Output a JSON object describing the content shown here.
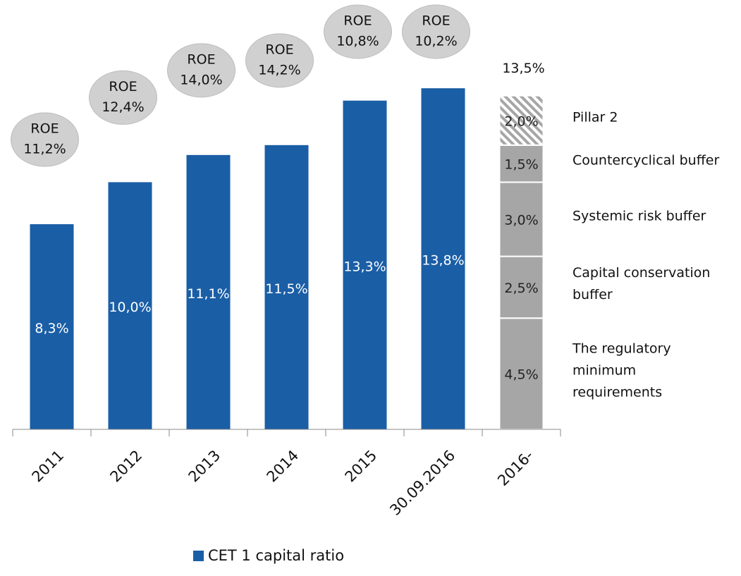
{
  "chart_data": {
    "type": "bar",
    "categories": [
      "2011",
      "2012",
      "2013",
      "2014",
      "2015",
      "30.09.2016",
      "2016-"
    ],
    "series": [
      {
        "name": "CET 1 capital ratio",
        "color": "#1a5ea6",
        "values": [
          8.3,
          10.0,
          11.1,
          11.5,
          13.3,
          13.8,
          null
        ],
        "value_labels": [
          "8,3%",
          "10,0%",
          "11,1%",
          "11,5%",
          "13,3%",
          "13,8%",
          null
        ]
      }
    ],
    "roe": {
      "label": "ROE",
      "values": [
        11.2,
        12.4,
        14.0,
        14.2,
        10.8,
        10.2,
        null
      ],
      "value_labels": [
        "11,2%",
        "12,4%",
        "14,0%",
        "14,2%",
        "10,8%",
        "10,2%",
        null
      ],
      "color": "#d0d0d0"
    },
    "requirements": {
      "category_index": 6,
      "total": 13.5,
      "total_label": "13,5%",
      "segments": [
        {
          "name": "The regulatory minimum requirements",
          "value": 4.5,
          "value_label": "4,5%",
          "color": "#a6a6a6"
        },
        {
          "name": "Capital conservation buffer",
          "value": 2.5,
          "value_label": "2,5%",
          "color": "#a6a6a6"
        },
        {
          "name": "Systemic risk buffer",
          "value": 3.0,
          "value_label": "3,0%",
          "color": "#a6a6a6"
        },
        {
          "name": "Countercyclical buffer",
          "value": 1.5,
          "value_label": "1,5%",
          "color": "#a6a6a6"
        },
        {
          "name": "Pillar 2",
          "value": 2.0,
          "value_label": "2,0%",
          "color": "#a6a6a6",
          "pattern": "hatched"
        }
      ]
    },
    "ylim": [
      0,
      17
    ],
    "legend": "bottom"
  }
}
